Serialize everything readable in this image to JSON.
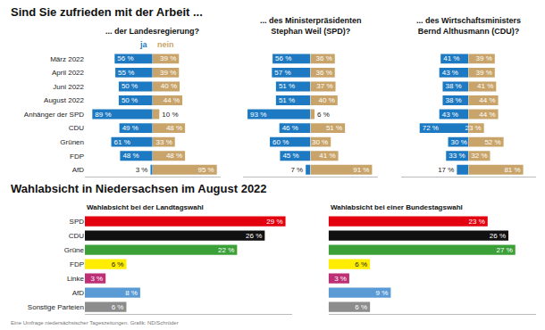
{
  "chart_data": [
    {
      "type": "diverging_bar",
      "title": "Sind Sie zufrieden mit der Arbeit ...",
      "subtitle": "... der Landesregierung?",
      "orientation": "horizontal",
      "tick_labels": "y",
      "data_labels": true,
      "xlim": [
        0,
        100
      ],
      "categories": [
        "März 2022",
        "April 2022",
        "Juni 2022",
        "August 2022",
        "Anhänger der SPD",
        "CDU",
        "Grünen",
        "FDP",
        "AfD"
      ],
      "series": [
        {
          "name": "ja",
          "color": "#1d7ac2",
          "values": [
            56,
            55,
            50,
            50,
            89,
            49,
            61,
            48,
            3
          ],
          "value_labels": [
            "56 %",
            "55 %",
            "50 %",
            "50 %",
            "89 %",
            "49 %",
            "61 %",
            "48 %",
            "3 %"
          ]
        },
        {
          "name": "nein",
          "color": "#c8a46a",
          "values": [
            39,
            39,
            40,
            44,
            10,
            48,
            33,
            48,
            95
          ],
          "value_labels": [
            "39 %",
            "39 %",
            "40 %",
            "44 %",
            "10 %",
            "48 %",
            "33 %",
            "48 %",
            "95 %"
          ]
        }
      ]
    },
    {
      "type": "diverging_bar",
      "subtitle": "... des Ministerpräsidenten\nStephan Weil (SPD)?",
      "orientation": "horizontal",
      "tick_labels": false,
      "data_labels": true,
      "xlim": [
        0,
        100
      ],
      "categories": [
        "März 2022",
        "April 2022",
        "Juni 2022",
        "August 2022",
        "Anhänger der SPD",
        "CDU",
        "Grünen",
        "FDP",
        "AfD"
      ],
      "series": [
        {
          "color": "#1d7ac2",
          "values": [
            56,
            57,
            51,
            51,
            93,
            46,
            60,
            45,
            7
          ],
          "value_labels": [
            "56 %",
            "57 %",
            "51 %",
            "51 %",
            "93 %",
            "46 %",
            "60 %",
            "45 %",
            "7 %"
          ]
        },
        {
          "color": "#c8a46a",
          "values": [
            36,
            36,
            37,
            40,
            6,
            51,
            30,
            41,
            91
          ],
          "value_labels": [
            "36 %",
            "36 %",
            "37 %",
            "40 %",
            "6 %",
            "51 %",
            "30 %",
            "41 %",
            "91 %"
          ]
        }
      ]
    },
    {
      "type": "diverging_bar",
      "subtitle": "... des Wirtschaftsministers\nBernd Althusmann (CDU)?",
      "orientation": "horizontal",
      "tick_labels": false,
      "data_labels": true,
      "xlim": [
        0,
        100
      ],
      "categories": [
        "März 2022",
        "April 2022",
        "Juni 2022",
        "August 2022",
        "Anhänger der SPD",
        "CDU",
        "Grünen",
        "FDP",
        "AfD"
      ],
      "series": [
        {
          "color": "#1d7ac2",
          "values": [
            41,
            43,
            38,
            38,
            43,
            72,
            30,
            33,
            17
          ],
          "value_labels": [
            "41 %",
            "43 %",
            "38 %",
            "38 %",
            "43 %",
            "72 %",
            "30 %",
            "33 %",
            "17 %"
          ]
        },
        {
          "color": "#c8a46a",
          "values": [
            39,
            39,
            41,
            44,
            44,
            23,
            52,
            32,
            81
          ],
          "value_labels": [
            "39 %",
            "39 %",
            "41 %",
            "44 %",
            "44 %",
            "23 %",
            "52 %",
            "32 %",
            "81 %"
          ]
        }
      ]
    },
    {
      "type": "bar",
      "title": "Wahlabsicht in Niedersachsen im August 2022",
      "subtitle": "Wahlabsicht bei der Landtagswahl",
      "orientation": "horizontal",
      "tick_labels": "y",
      "data_labels": true,
      "xlim": [
        0,
        30
      ],
      "categories": [
        "SPD",
        "CDU",
        "Grüne",
        "FDP",
        "Linke",
        "AfD",
        "Sonstige Parteien"
      ],
      "values": [
        29,
        26,
        22,
        6,
        3,
        8,
        6
      ],
      "value_labels": [
        "29 %",
        "26 %",
        "22 %",
        "6 %",
        "3 %",
        "8 %",
        "6 %"
      ],
      "colors": [
        "#e3000f",
        "#111111",
        "#3aa037",
        "#ffed00",
        "#be3075",
        "#5b9bd5",
        "#8c8c8c"
      ]
    },
    {
      "type": "bar",
      "subtitle": "Wahlabsicht bei einer Bundestagswahl",
      "orientation": "horizontal",
      "tick_labels": false,
      "data_labels": true,
      "xlim": [
        0,
        30
      ],
      "categories": [
        "SPD",
        "CDU",
        "Grüne",
        "FDP",
        "Linke",
        "AfD",
        "Sonstige Parteien"
      ],
      "values": [
        23,
        26,
        27,
        6,
        3,
        9,
        6
      ],
      "value_labels": [
        "23 %",
        "26 %",
        "27 %",
        "6 %",
        "3 %",
        "9 %",
        "6 %"
      ],
      "colors": [
        "#e3000f",
        "#111111",
        "#3aa037",
        "#ffed00",
        "#be3075",
        "#5b9bd5",
        "#8c8c8c"
      ]
    }
  ],
  "footer": "Eine Umfrage niedersächsischer Tageszeitungen. Grafik: ND/Schröder"
}
